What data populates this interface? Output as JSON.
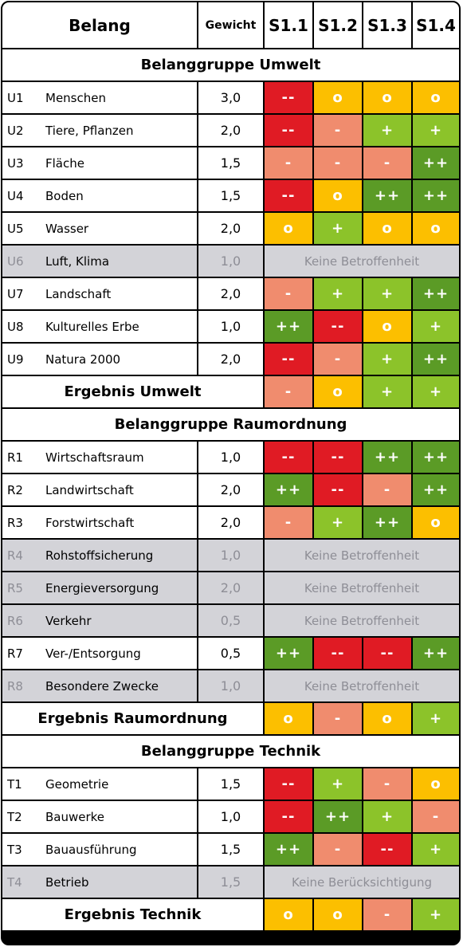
{
  "header": {
    "belang": "Belang",
    "gewicht": "Gewicht",
    "scenarios": [
      "S1.1",
      "S1.2",
      "S1.3",
      "S1.4"
    ]
  },
  "colors": {
    "--": "#e01b24",
    "-": "#f08c6e",
    "o": "#fcbf00",
    "+": "#8cc32a",
    "++": "#5b9b26"
  },
  "rows": [
    {
      "kind": "group",
      "label": "Belanggruppe Umwelt"
    },
    {
      "kind": "item",
      "code": "U1",
      "name": "Menschen",
      "weight": "3,0",
      "scores": [
        "--",
        "o",
        "o",
        "o"
      ]
    },
    {
      "kind": "item",
      "code": "U2",
      "name": "Tiere, Pflanzen",
      "weight": "2,0",
      "scores": [
        "--",
        "-",
        "+",
        "+"
      ]
    },
    {
      "kind": "item",
      "code": "U3",
      "name": "Fläche",
      "weight": "1,5",
      "scores": [
        "-",
        "-",
        "-",
        "++"
      ]
    },
    {
      "kind": "item",
      "code": "U4",
      "name": "Boden",
      "weight": "1,5",
      "scores": [
        "--",
        "o",
        "++",
        "++"
      ]
    },
    {
      "kind": "item",
      "code": "U5",
      "name": "Wasser",
      "weight": "2,0",
      "scores": [
        "o",
        "+",
        "o",
        "o"
      ]
    },
    {
      "kind": "item",
      "code": "U6",
      "name": "Luft, Klima",
      "weight": "1,0",
      "note": "Keine Betroffenheit"
    },
    {
      "kind": "item",
      "code": "U7",
      "name": "Landschaft",
      "weight": "2,0",
      "scores": [
        "-",
        "+",
        "+",
        "++"
      ]
    },
    {
      "kind": "item",
      "code": "U8",
      "name": "Kulturelles Erbe",
      "weight": "1,0",
      "scores": [
        "++",
        "--",
        "o",
        "+"
      ]
    },
    {
      "kind": "item",
      "code": "U9",
      "name": "Natura 2000",
      "weight": "2,0",
      "scores": [
        "--",
        "-",
        "+",
        "++"
      ]
    },
    {
      "kind": "result",
      "label": "Ergebnis Umwelt",
      "scores": [
        "-",
        "o",
        "+",
        "+"
      ]
    },
    {
      "kind": "group",
      "label": "Belanggruppe Raumordnung"
    },
    {
      "kind": "item",
      "code": "R1",
      "name": "Wirtschaftsraum",
      "weight": "1,0",
      "scores": [
        "--",
        "--",
        "++",
        "++"
      ]
    },
    {
      "kind": "item",
      "code": "R2",
      "name": "Landwirtschaft",
      "weight": "2,0",
      "scores": [
        "++",
        "--",
        "-",
        "++"
      ]
    },
    {
      "kind": "item",
      "code": "R3",
      "name": "Forstwirtschaft",
      "weight": "2,0",
      "scores": [
        "-",
        "+",
        "++",
        "o"
      ]
    },
    {
      "kind": "item",
      "code": "R4",
      "name": "Rohstoffsicherung",
      "weight": "1,0",
      "note": "Keine Betroffenheit"
    },
    {
      "kind": "item",
      "code": "R5",
      "name": "Energieversorgung",
      "weight": "2,0",
      "note": "Keine Betroffenheit"
    },
    {
      "kind": "item",
      "code": "R6",
      "name": "Verkehr",
      "weight": "0,5",
      "note": "Keine Betroffenheit"
    },
    {
      "kind": "item",
      "code": "R7",
      "name": "Ver-/Entsorgung",
      "weight": "0,5",
      "scores": [
        "++",
        "--",
        "--",
        "++"
      ]
    },
    {
      "kind": "item",
      "code": "R8",
      "name": "Besondere Zwecke",
      "weight": "1,0",
      "note": "Keine Betroffenheit"
    },
    {
      "kind": "result",
      "label": "Ergebnis Raumordnung",
      "scores": [
        "o",
        "-",
        "o",
        "+"
      ]
    },
    {
      "kind": "group",
      "label": "Belanggruppe Technik"
    },
    {
      "kind": "item",
      "code": "T1",
      "name": "Geometrie",
      "weight": "1,5",
      "scores": [
        "--",
        "+",
        "-",
        "o"
      ]
    },
    {
      "kind": "item",
      "code": "T2",
      "name": "Bauwerke",
      "weight": "1,0",
      "scores": [
        "--",
        "++",
        "+",
        "-"
      ]
    },
    {
      "kind": "item",
      "code": "T3",
      "name": "Bauausführung",
      "weight": "1,5",
      "scores": [
        "++",
        "-",
        "--",
        "+"
      ]
    },
    {
      "kind": "item",
      "code": "T4",
      "name": "Betrieb",
      "weight": "1,5",
      "note": "Keine Berücksichtigung"
    },
    {
      "kind": "result",
      "label": "Ergebnis Technik",
      "scores": [
        "o",
        "o",
        "-",
        "+"
      ]
    }
  ],
  "chart_data": {
    "type": "table",
    "columns": [
      "Belang",
      "Gewicht",
      "S1.1",
      "S1.2",
      "S1.3",
      "S1.4"
    ],
    "scale": [
      "--",
      "-",
      "o",
      "+",
      "++"
    ]
  }
}
